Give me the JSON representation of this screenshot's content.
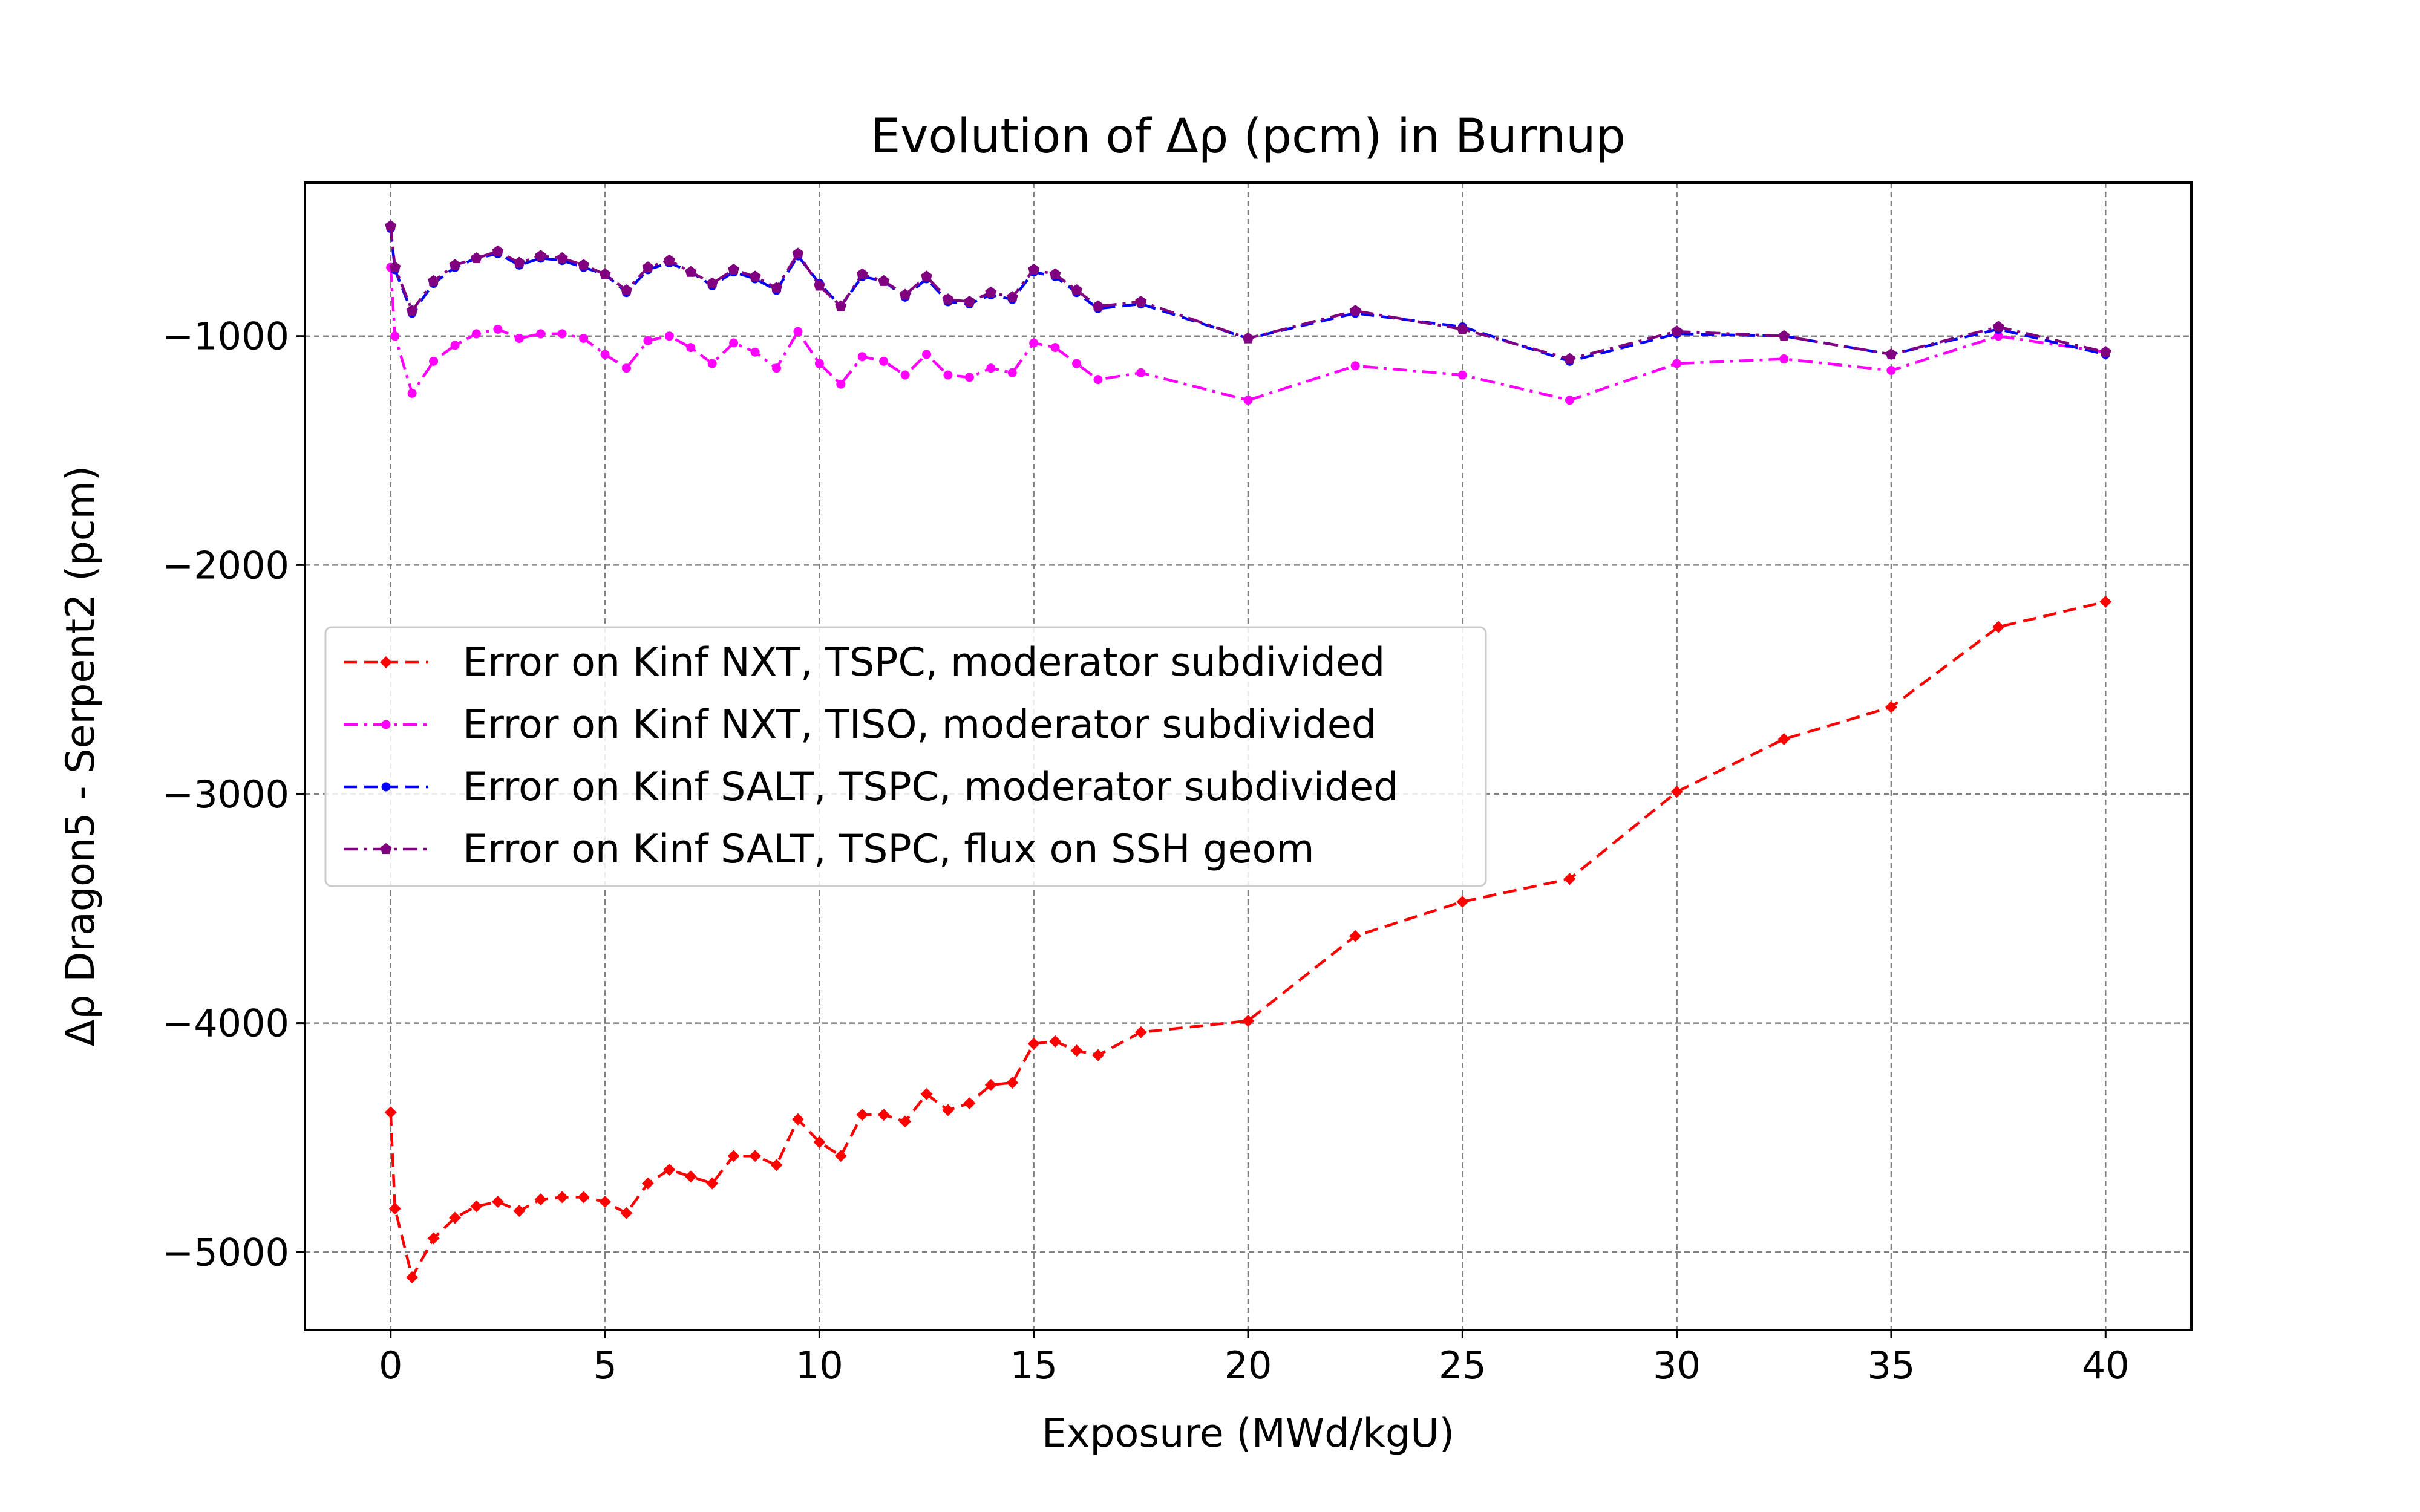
{
  "chart_data": {
    "type": "line",
    "title": "Evolution of Δρ (pcm) in Burnup",
    "xlabel": "Exposure (MWd/kgU)",
    "ylabel": "Δρ Dragon5 - Serpent2 (pcm)",
    "xlim": [
      -2,
      42
    ],
    "ylim": [
      -5340,
      -330
    ],
    "xticks": [
      0,
      5,
      10,
      15,
      20,
      25,
      30,
      35,
      40
    ],
    "yticks": [
      -5000,
      -4000,
      -3000,
      -2000,
      -1000
    ],
    "xtick_labels": [
      "0",
      "5",
      "10",
      "15",
      "20",
      "25",
      "30",
      "35",
      "40"
    ],
    "ytick_labels": [
      "−5000",
      "−4000",
      "−3000",
      "−2000",
      "−1000"
    ],
    "grid": true,
    "legend_position": "center-left",
    "x": [
      0,
      0.1,
      0.5,
      1,
      1.5,
      2,
      2.5,
      3,
      3.5,
      4,
      4.5,
      5,
      5.5,
      6,
      6.5,
      7,
      7.5,
      8,
      8.5,
      9,
      9.5,
      10,
      10.5,
      11,
      11.5,
      12,
      12.5,
      13,
      13.5,
      14,
      14.5,
      15,
      15.5,
      16,
      16.5,
      17.5,
      20,
      22.5,
      25,
      27.5,
      30,
      32.5,
      35,
      37.5,
      40
    ],
    "series": [
      {
        "name": "Error on Kinf NXT, TSPC, moderator subdivided",
        "color": "#ff0000",
        "line_style": "dashed",
        "marker": "diamond",
        "values": [
          -4390,
          -4810,
          -5110,
          -4940,
          -4850,
          -4800,
          -4780,
          -4820,
          -4770,
          -4760,
          -4760,
          -4780,
          -4830,
          -4700,
          -4640,
          -4670,
          -4700,
          -4580,
          -4580,
          -4620,
          -4420,
          -4520,
          -4580,
          -4400,
          -4400,
          -4430,
          -4310,
          -4380,
          -4350,
          -4270,
          -4260,
          -4090,
          -4080,
          -4120,
          -4140,
          -4040,
          -3990,
          -3620,
          -3470,
          -3370,
          -2990,
          -2760,
          -2620,
          -2270,
          -2160
        ]
      },
      {
        "name": "Error on Kinf NXT, TISO, moderator subdivided",
        "color": "#ff00ff",
        "line_style": "dashdot",
        "marker": "circle",
        "values": [
          -700,
          -1000,
          -1250,
          -1110,
          -1040,
          -990,
          -970,
          -1010,
          -990,
          -990,
          -1010,
          -1080,
          -1140,
          -1020,
          -1000,
          -1050,
          -1120,
          -1030,
          -1070,
          -1140,
          -980,
          -1120,
          -1210,
          -1090,
          -1110,
          -1170,
          -1080,
          -1170,
          -1180,
          -1140,
          -1160,
          -1030,
          -1050,
          -1120,
          -1190,
          -1160,
          -1280,
          -1130,
          -1170,
          -1280,
          -1120,
          -1100,
          -1150,
          -1000,
          -1070
        ]
      },
      {
        "name": "Error on Kinf SALT, TSPC, moderator subdivided",
        "color": "#0000ff",
        "line_style": "dashed",
        "marker": "circle",
        "values": [
          -530,
          -710,
          -900,
          -770,
          -700,
          -660,
          -640,
          -690,
          -660,
          -670,
          -700,
          -730,
          -810,
          -710,
          -680,
          -720,
          -780,
          -720,
          -750,
          -800,
          -650,
          -770,
          -870,
          -740,
          -760,
          -830,
          -750,
          -850,
          -860,
          -820,
          -840,
          -720,
          -740,
          -810,
          -880,
          -860,
          -1010,
          -900,
          -960,
          -1110,
          -990,
          -1000,
          -1080,
          -970,
          -1080
        ]
      },
      {
        "name": "Error on Kinf SALT, TSPC, flux on SSH geom",
        "color": "#800080",
        "line_style": "dashdot",
        "marker": "pentagon",
        "values": [
          -520,
          -700,
          -890,
          -760,
          -690,
          -660,
          -630,
          -680,
          -650,
          -660,
          -690,
          -730,
          -800,
          -700,
          -670,
          -720,
          -770,
          -710,
          -740,
          -790,
          -640,
          -780,
          -870,
          -730,
          -760,
          -820,
          -740,
          -840,
          -850,
          -810,
          -830,
          -710,
          -730,
          -800,
          -870,
          -850,
          -1010,
          -890,
          -970,
          -1100,
          -980,
          -1000,
          -1080,
          -960,
          -1070
        ]
      }
    ]
  }
}
